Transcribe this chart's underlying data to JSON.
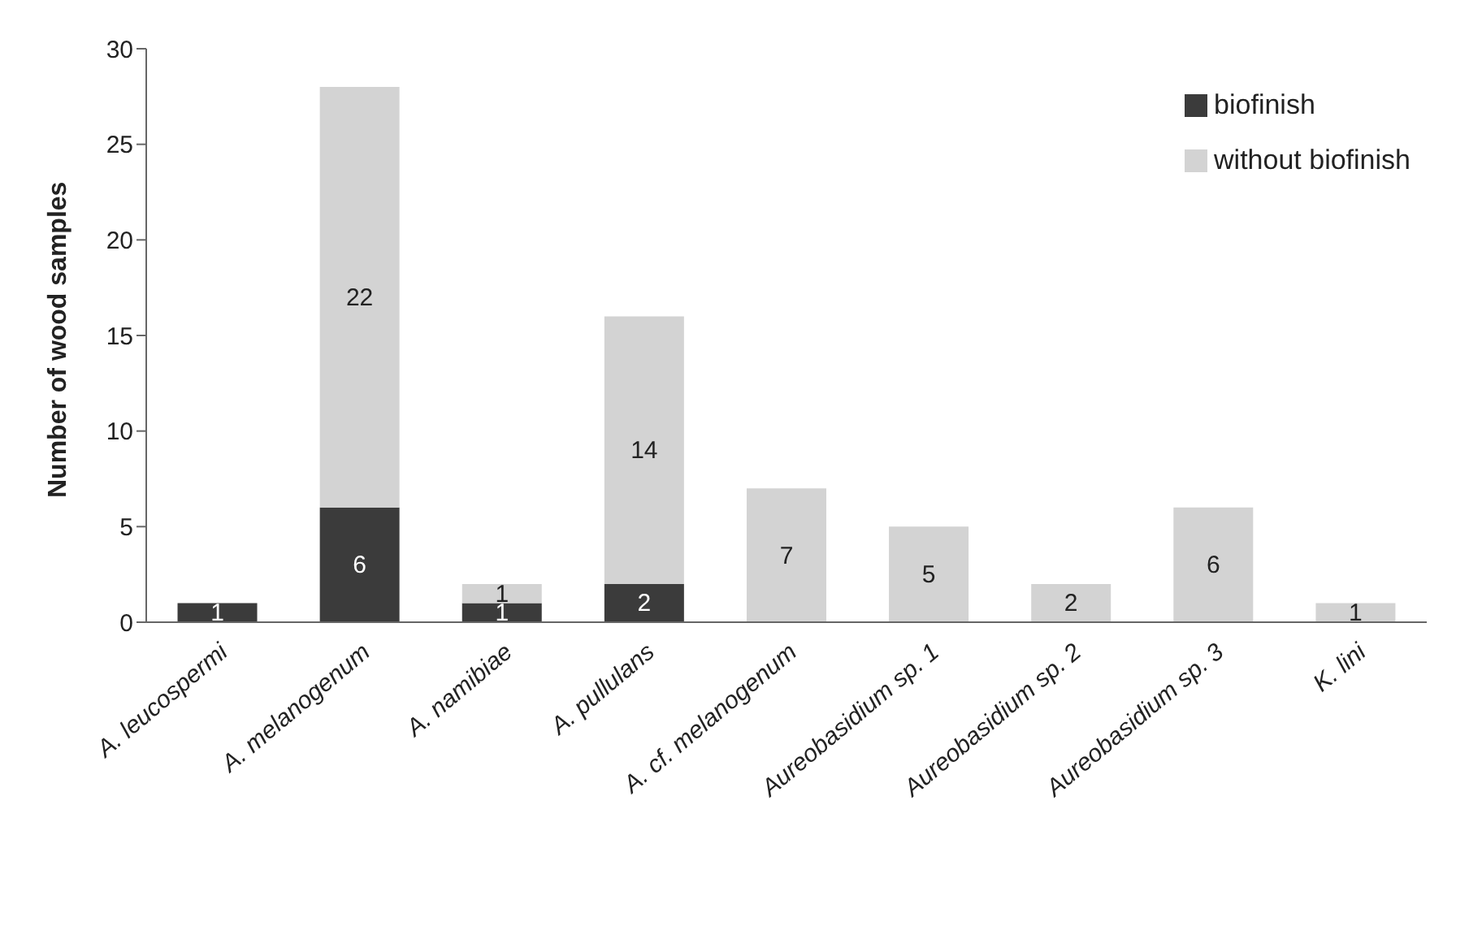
{
  "chart_data": {
    "type": "bar",
    "stacked": true,
    "ylabel": "Number of wood samples",
    "categories": [
      "A. leucospermi",
      "A. melanogenum",
      "A. namibiae",
      "A. pullulans",
      "A. cf. melanogenum",
      "Aureobasidium sp. 1",
      "Aureobasidium sp. 2",
      "Aureobasidium sp. 3",
      "K. lini"
    ],
    "series": [
      {
        "name": "biofinish",
        "color": "#3b3b3b",
        "values": [
          1,
          6,
          1,
          2,
          0,
          0,
          0,
          0,
          0
        ],
        "value_labels": [
          "1",
          "6",
          "1",
          "2",
          null,
          null,
          null,
          null,
          null
        ]
      },
      {
        "name": "without biofinish",
        "color": "#d3d3d3",
        "values": [
          0,
          22,
          1,
          14,
          7,
          5,
          2,
          6,
          1
        ],
        "value_labels": [
          null,
          "22",
          "1",
          "14",
          "7",
          "5",
          "2",
          "6",
          "1"
        ]
      }
    ],
    "ylim": [
      0,
      30
    ],
    "yticks": [
      0,
      5,
      10,
      15,
      20,
      25,
      30
    ],
    "grid": false,
    "legend": "top right"
  }
}
